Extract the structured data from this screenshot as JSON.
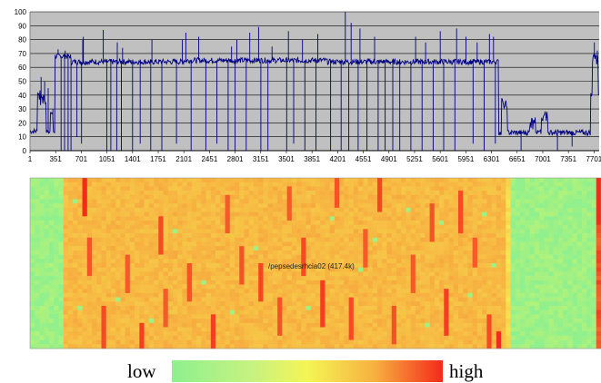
{
  "chart_data": [
    {
      "type": "line",
      "title": "",
      "xlabel": "",
      "ylabel": "",
      "ylim": [
        0,
        100
      ],
      "xlim": [
        1,
        7771
      ],
      "yticks": [
        0,
        10,
        20,
        30,
        40,
        50,
        60,
        70,
        80,
        90,
        100
      ],
      "xtick_labels": [
        "1",
        "351",
        "701",
        "1051",
        "1401",
        "1751",
        "2101",
        "2451",
        "2801",
        "3151",
        "3501",
        "3851",
        "4201",
        "4551",
        "4901",
        "5251",
        "5601",
        "5951",
        "6301",
        "6651",
        "7001",
        "7351",
        "7701"
      ],
      "xtick_values": [
        1,
        351,
        701,
        1051,
        1401,
        1751,
        2101,
        2451,
        2801,
        3151,
        3501,
        3851,
        4201,
        4551,
        4901,
        5251,
        5601,
        5951,
        6301,
        6651,
        7001,
        7351,
        7701
      ],
      "grid": true,
      "series_color": "#000080",
      "plot_bg": "#c0c0c0",
      "baseline_segments": [
        {
          "x_start": 1,
          "x_end": 340,
          "level": 14
        },
        {
          "x_start": 340,
          "x_end": 560,
          "level": 68
        },
        {
          "x_start": 560,
          "x_end": 2100,
          "level": 64
        },
        {
          "x_start": 2100,
          "x_end": 4050,
          "level": 65
        },
        {
          "x_start": 4050,
          "x_end": 6400,
          "level": 64
        },
        {
          "x_start": 6400,
          "x_end": 7650,
          "level": 13
        },
        {
          "x_start": 7650,
          "x_end": 7771,
          "level": 40
        }
      ],
      "bumps": [
        {
          "x_start": 100,
          "x_end": 220,
          "level": 42
        },
        {
          "x_start": 280,
          "x_end": 320,
          "level": 30
        },
        {
          "x_start": 6440,
          "x_end": 6520,
          "level": 37
        },
        {
          "x_start": 6820,
          "x_end": 6900,
          "level": 24
        },
        {
          "x_start": 6980,
          "x_end": 7070,
          "level": 30
        },
        {
          "x_start": 7680,
          "x_end": 7760,
          "level": 70
        }
      ],
      "drops": [
        {
          "x": 420,
          "y": 0
        },
        {
          "x": 470,
          "y": 0
        },
        {
          "x": 520,
          "y": 0
        },
        {
          "x": 560,
          "y": 0
        },
        {
          "x": 640,
          "y": 10
        },
        {
          "x": 700,
          "y": 5
        },
        {
          "x": 1050,
          "y": 0
        },
        {
          "x": 1100,
          "y": 0
        },
        {
          "x": 1180,
          "y": 0
        },
        {
          "x": 1250,
          "y": 0
        },
        {
          "x": 1400,
          "y": 0
        },
        {
          "x": 1500,
          "y": 5
        },
        {
          "x": 1650,
          "y": 0
        },
        {
          "x": 1800,
          "y": 0
        },
        {
          "x": 2000,
          "y": 5
        },
        {
          "x": 2200,
          "y": 0
        },
        {
          "x": 2400,
          "y": 0
        },
        {
          "x": 2550,
          "y": 5
        },
        {
          "x": 2700,
          "y": 0
        },
        {
          "x": 2800,
          "y": 0
        },
        {
          "x": 2950,
          "y": 0
        },
        {
          "x": 3150,
          "y": 0
        },
        {
          "x": 3250,
          "y": 0
        },
        {
          "x": 3500,
          "y": 0
        },
        {
          "x": 3600,
          "y": 5
        },
        {
          "x": 3750,
          "y": 0
        },
        {
          "x": 3900,
          "y": 0
        },
        {
          "x": 4100,
          "y": 0
        },
        {
          "x": 4250,
          "y": 0
        },
        {
          "x": 4350,
          "y": 0
        },
        {
          "x": 4480,
          "y": 0
        },
        {
          "x": 4600,
          "y": 0
        },
        {
          "x": 4750,
          "y": 0
        },
        {
          "x": 4850,
          "y": 0
        },
        {
          "x": 4950,
          "y": 0
        },
        {
          "x": 5050,
          "y": 0
        },
        {
          "x": 5200,
          "y": 0
        },
        {
          "x": 5350,
          "y": 0
        },
        {
          "x": 5500,
          "y": 0
        },
        {
          "x": 5650,
          "y": 0
        },
        {
          "x": 5800,
          "y": 0
        },
        {
          "x": 6050,
          "y": 5
        },
        {
          "x": 6200,
          "y": 0
        },
        {
          "x": 6350,
          "y": 5
        },
        {
          "x": 6700,
          "y": 0
        },
        {
          "x": 7200,
          "y": 0
        },
        {
          "x": 7400,
          "y": 3
        }
      ],
      "spikes": [
        {
          "x": 150,
          "y": 53
        },
        {
          "x": 200,
          "y": 50
        },
        {
          "x": 250,
          "y": 45
        },
        {
          "x": 310,
          "y": 30
        },
        {
          "x": 380,
          "y": 73
        },
        {
          "x": 480,
          "y": 72
        },
        {
          "x": 720,
          "y": 80
        },
        {
          "x": 730,
          "y": 82
        },
        {
          "x": 1000,
          "y": 87
        },
        {
          "x": 1100,
          "y": 84
        },
        {
          "x": 1190,
          "y": 78
        },
        {
          "x": 1260,
          "y": 74
        },
        {
          "x": 1660,
          "y": 80
        },
        {
          "x": 2080,
          "y": 80
        },
        {
          "x": 2130,
          "y": 85
        },
        {
          "x": 2300,
          "y": 82
        },
        {
          "x": 2550,
          "y": 80
        },
        {
          "x": 2750,
          "y": 75
        },
        {
          "x": 2820,
          "y": 80
        },
        {
          "x": 3000,
          "y": 85
        },
        {
          "x": 3120,
          "y": 89
        },
        {
          "x": 3300,
          "y": 75
        },
        {
          "x": 3530,
          "y": 86
        },
        {
          "x": 3720,
          "y": 80
        },
        {
          "x": 3930,
          "y": 84
        },
        {
          "x": 4100,
          "y": 88
        },
        {
          "x": 4300,
          "y": 100
        },
        {
          "x": 4380,
          "y": 92
        },
        {
          "x": 4500,
          "y": 88
        },
        {
          "x": 4700,
          "y": 82
        },
        {
          "x": 4850,
          "y": 84
        },
        {
          "x": 5050,
          "y": 80
        },
        {
          "x": 5260,
          "y": 82
        },
        {
          "x": 5400,
          "y": 78
        },
        {
          "x": 5600,
          "y": 86
        },
        {
          "x": 5820,
          "y": 88
        },
        {
          "x": 5950,
          "y": 82
        },
        {
          "x": 6100,
          "y": 78
        },
        {
          "x": 6200,
          "y": 80
        },
        {
          "x": 6270,
          "y": 84
        },
        {
          "x": 6330,
          "y": 82
        },
        {
          "x": 7700,
          "y": 78
        },
        {
          "x": 7740,
          "y": 72
        }
      ]
    },
    {
      "type": "heatmap",
      "title": "",
      "annotation": "/pepsedesrhcia02 (417.4k)",
      "legend": {
        "low_label": "low",
        "high_label": "high"
      },
      "colorscale": [
        "#8ef08e",
        "#f5f555",
        "#f7b040",
        "#f42a1a"
      ],
      "columns": 120,
      "rows": 40,
      "regions": [
        {
          "col_start": 0,
          "col_end": 7,
          "base_level": 0.05
        },
        {
          "col_start": 7,
          "col_end": 100,
          "base_level": 0.62
        },
        {
          "col_start": 100,
          "col_end": 101,
          "base_level": 0.45
        },
        {
          "col_start": 101,
          "col_end": 119,
          "base_level": 0.05
        },
        {
          "col_start": 119,
          "col_end": 120,
          "base_level": 0.9
        }
      ],
      "hot_streaks": [
        {
          "col": 11,
          "row_start": 0,
          "row_end": 8,
          "level": 1.0
        },
        {
          "col": 12,
          "row_start": 14,
          "row_end": 22,
          "level": 0.9
        },
        {
          "col": 15,
          "row_start": 30,
          "row_end": 39,
          "level": 0.92
        },
        {
          "col": 20,
          "row_start": 18,
          "row_end": 26,
          "level": 0.88
        },
        {
          "col": 23,
          "row_start": 34,
          "row_end": 39,
          "level": 0.95
        },
        {
          "col": 27,
          "row_start": 9,
          "row_end": 17,
          "level": 0.92
        },
        {
          "col": 28,
          "row_start": 26,
          "row_end": 34,
          "level": 0.88
        },
        {
          "col": 33,
          "row_start": 20,
          "row_end": 28,
          "level": 0.9
        },
        {
          "col": 38,
          "row_start": 32,
          "row_end": 39,
          "level": 0.95
        },
        {
          "col": 41,
          "row_start": 4,
          "row_end": 12,
          "level": 0.88
        },
        {
          "col": 44,
          "row_start": 16,
          "row_end": 24,
          "level": 0.9
        },
        {
          "col": 48,
          "row_start": 20,
          "row_end": 28,
          "level": 0.93
        },
        {
          "col": 52,
          "row_start": 28,
          "row_end": 36,
          "level": 0.9
        },
        {
          "col": 54,
          "row_start": 2,
          "row_end": 9,
          "level": 0.88
        },
        {
          "col": 57,
          "row_start": 14,
          "row_end": 22,
          "level": 0.92
        },
        {
          "col": 61,
          "row_start": 24,
          "row_end": 34,
          "level": 0.95
        },
        {
          "col": 64,
          "row_start": 0,
          "row_end": 6,
          "level": 0.9
        },
        {
          "col": 67,
          "row_start": 28,
          "row_end": 37,
          "level": 0.92
        },
        {
          "col": 70,
          "row_start": 12,
          "row_end": 20,
          "level": 0.88
        },
        {
          "col": 73,
          "row_start": 0,
          "row_end": 7,
          "level": 0.93
        },
        {
          "col": 76,
          "row_start": 30,
          "row_end": 38,
          "level": 0.9
        },
        {
          "col": 80,
          "row_start": 18,
          "row_end": 26,
          "level": 0.88
        },
        {
          "col": 84,
          "row_start": 6,
          "row_end": 14,
          "level": 0.9
        },
        {
          "col": 87,
          "row_start": 26,
          "row_end": 36,
          "level": 0.95
        },
        {
          "col": 90,
          "row_start": 3,
          "row_end": 12,
          "level": 0.92
        },
        {
          "col": 93,
          "row_start": 14,
          "row_end": 20,
          "level": 0.88
        },
        {
          "col": 96,
          "row_start": 32,
          "row_end": 39,
          "level": 0.92
        },
        {
          "col": 98,
          "row_start": 36,
          "row_end": 39,
          "level": 1.0
        },
        {
          "col": 119,
          "row_start": 0,
          "row_end": 10,
          "level": 1.0
        }
      ],
      "cool_spots": [
        {
          "col": 9,
          "row": 5
        },
        {
          "col": 10,
          "row": 30
        },
        {
          "col": 18,
          "row": 28
        },
        {
          "col": 25,
          "row": 33
        },
        {
          "col": 30,
          "row": 12
        },
        {
          "col": 36,
          "row": 24
        },
        {
          "col": 42,
          "row": 31
        },
        {
          "col": 47,
          "row": 16
        },
        {
          "col": 58,
          "row": 30
        },
        {
          "col": 63,
          "row": 9
        },
        {
          "col": 69,
          "row": 21
        },
        {
          "col": 72,
          "row": 14
        },
        {
          "col": 79,
          "row": 7
        },
        {
          "col": 83,
          "row": 34
        },
        {
          "col": 86,
          "row": 10
        },
        {
          "col": 92,
          "row": 27
        },
        {
          "col": 95,
          "row": 8
        },
        {
          "col": 97,
          "row": 20
        }
      ]
    }
  ]
}
